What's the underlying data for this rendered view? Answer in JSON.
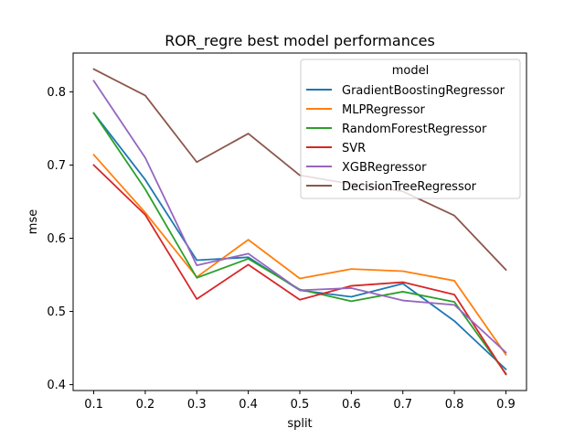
{
  "chart_data": {
    "type": "line",
    "title": "ROR_regre best model performances",
    "xlabel": "split",
    "ylabel": "mse",
    "x": [
      0.1,
      0.2,
      0.3,
      0.4,
      0.5,
      0.6,
      0.7,
      0.8,
      0.9
    ],
    "xlim": [
      0.06,
      0.94
    ],
    "ylim": [
      0.392,
      0.853
    ],
    "xticks": [
      0.1,
      0.2,
      0.3,
      0.4,
      0.5,
      0.6,
      0.7,
      0.8,
      0.9
    ],
    "xtick_labels": [
      "0.1",
      "0.2",
      "0.3",
      "0.4",
      "0.5",
      "0.6",
      "0.7",
      "0.8",
      "0.9"
    ],
    "yticks": [
      0.4,
      0.5,
      0.6,
      0.7,
      0.8
    ],
    "ytick_labels": [
      "0.4",
      "0.5",
      "0.6",
      "0.7",
      "0.8"
    ],
    "grid": false,
    "legend": {
      "title": "model",
      "position": "top-right"
    },
    "series": [
      {
        "name": "GradientBoostingRegressor",
        "color": "#1f77b4",
        "values": [
          0.771,
          0.68,
          0.57,
          0.574,
          0.529,
          0.52,
          0.538,
          0.487,
          0.421
        ]
      },
      {
        "name": "MLPRegressor",
        "color": "#ff7f0e",
        "values": [
          0.714,
          0.635,
          0.547,
          0.598,
          0.545,
          0.558,
          0.555,
          0.542,
          0.441
        ]
      },
      {
        "name": "RandomForestRegressor",
        "color": "#2ca02c",
        "values": [
          0.771,
          0.667,
          0.546,
          0.572,
          0.53,
          0.514,
          0.527,
          0.513,
          0.415
        ]
      },
      {
        "name": "SVR",
        "color": "#d62728",
        "values": [
          0.7,
          0.632,
          0.517,
          0.564,
          0.516,
          0.535,
          0.54,
          0.523,
          0.414
        ]
      },
      {
        "name": "XGBRegressor",
        "color": "#9467bd",
        "values": [
          0.815,
          0.71,
          0.563,
          0.579,
          0.529,
          0.532,
          0.515,
          0.509,
          0.444
        ]
      },
      {
        "name": "DecisionTreeRegressor",
        "color": "#8c564b",
        "values": [
          0.831,
          0.795,
          0.704,
          0.743,
          0.686,
          0.674,
          0.664,
          0.631,
          0.557
        ]
      }
    ]
  }
}
